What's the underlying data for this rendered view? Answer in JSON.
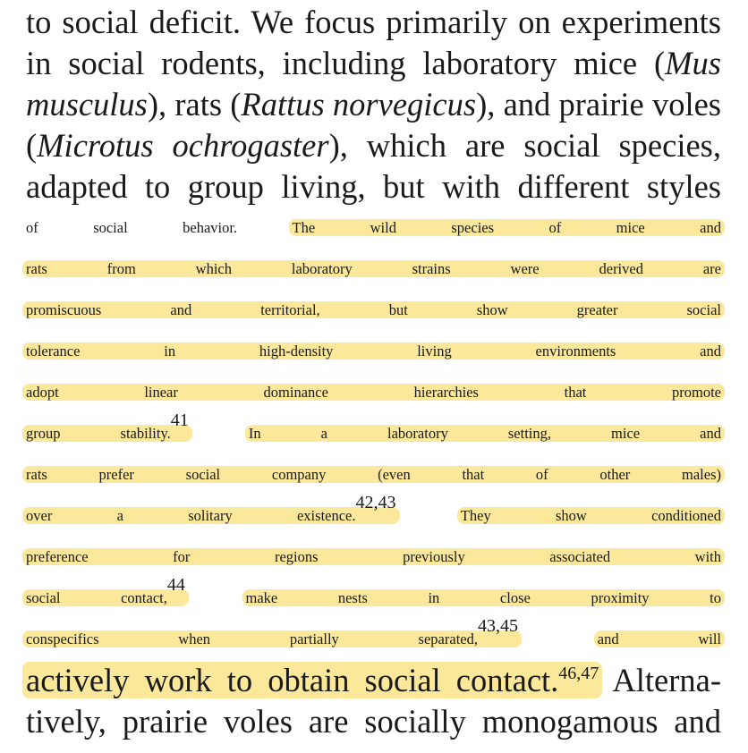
{
  "paragraph": {
    "l01": "to social deficit. We focus primarily on experiments",
    "l02": "in social rodents, including laboratory mice (",
    "l02_it": "Mus",
    "l03_it": "musculus",
    "l03a": "), rats (",
    "l03_it2": "Rattus norvegicus",
    "l03b": "), and prairie voles",
    "l04a": "(",
    "l04_it": "Microtus ochrogaster",
    "l04b": "), which are social species,",
    "l05": "adapted to group living, but with different styles",
    "l06a": "of social behavior.",
    "l06_hl": "The wild species of mice and",
    "l07_hl": "rats from which laboratory strains were derived are",
    "l08_hl": "promiscuous and territorial, but show greater social",
    "l09_hl": "tolerance in high-density living environments and",
    "l10_hl": "adopt linear dominance hierarchies that promote",
    "l11_hl_a": "group stability.",
    "l11_sup": "41",
    "l11_hl_b": "In a laboratory setting, mice and",
    "l12_hl": "rats prefer social company (even that of other males)",
    "l13_hl_a": "over a solitary existence.",
    "l13_sup": "42,43",
    "l13_hl_b": "They show conditioned",
    "l14_hl": "preference for regions previously associated with",
    "l15_hl_a": "social contact,",
    "l15_sup": "44",
    "l15_hl_b": "make nests in close proximity to",
    "l16_hl_a": "conspecifics when partially separated,",
    "l16_sup": "43,45",
    "l16_hl_b": "and will",
    "l17_hl_a": "actively work to obtain social contact.",
    "l17_sup": "46,47",
    "l17b": "Alterna-",
    "l18": "tively, prairie voles are socially monogamous and"
  },
  "colors": {
    "highlight": "#fbe89a",
    "text": "#1a1a1a"
  }
}
